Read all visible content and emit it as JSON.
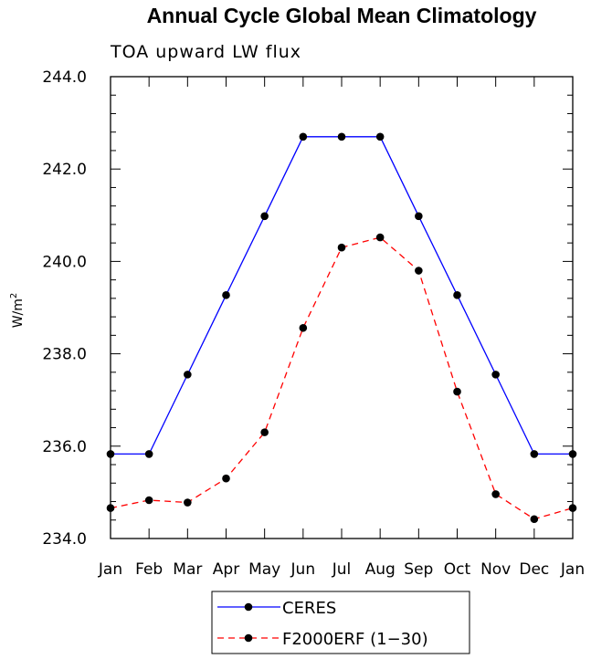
{
  "chart_data": {
    "type": "line",
    "title": "Annual Cycle Global Mean Climatology",
    "subtitle": "TOA upward LW flux",
    "ylabel": "W/m",
    "ylabel_superscript": "2",
    "xlabel": "",
    "categories": [
      "Jan",
      "Feb",
      "Mar",
      "Apr",
      "May",
      "Jun",
      "Jul",
      "Aug",
      "Sep",
      "Oct",
      "Nov",
      "Dec",
      "Jan"
    ],
    "ylim": [
      234.0,
      244.0
    ],
    "yticks": [
      "234.0",
      "236.0",
      "238.0",
      "240.0",
      "242.0",
      "244.0"
    ],
    "series": [
      {
        "name": "CERES",
        "color": "#0000ff",
        "dash": "solid",
        "values": [
          235.83,
          235.83,
          237.55,
          239.27,
          240.98,
          242.7,
          242.7,
          242.7,
          240.98,
          239.27,
          237.55,
          235.83,
          235.83
        ]
      },
      {
        "name": "F2000ERF (1-30)",
        "color": "#ff0000",
        "dash": "dashed",
        "values": [
          234.66,
          234.83,
          234.78,
          235.3,
          236.3,
          238.56,
          240.3,
          240.52,
          239.8,
          237.18,
          234.96,
          234.42,
          234.66
        ]
      }
    ],
    "legend": [
      "CERES",
      "F2000ERF (1−30)"
    ],
    "legend_position": "bottom-center"
  }
}
